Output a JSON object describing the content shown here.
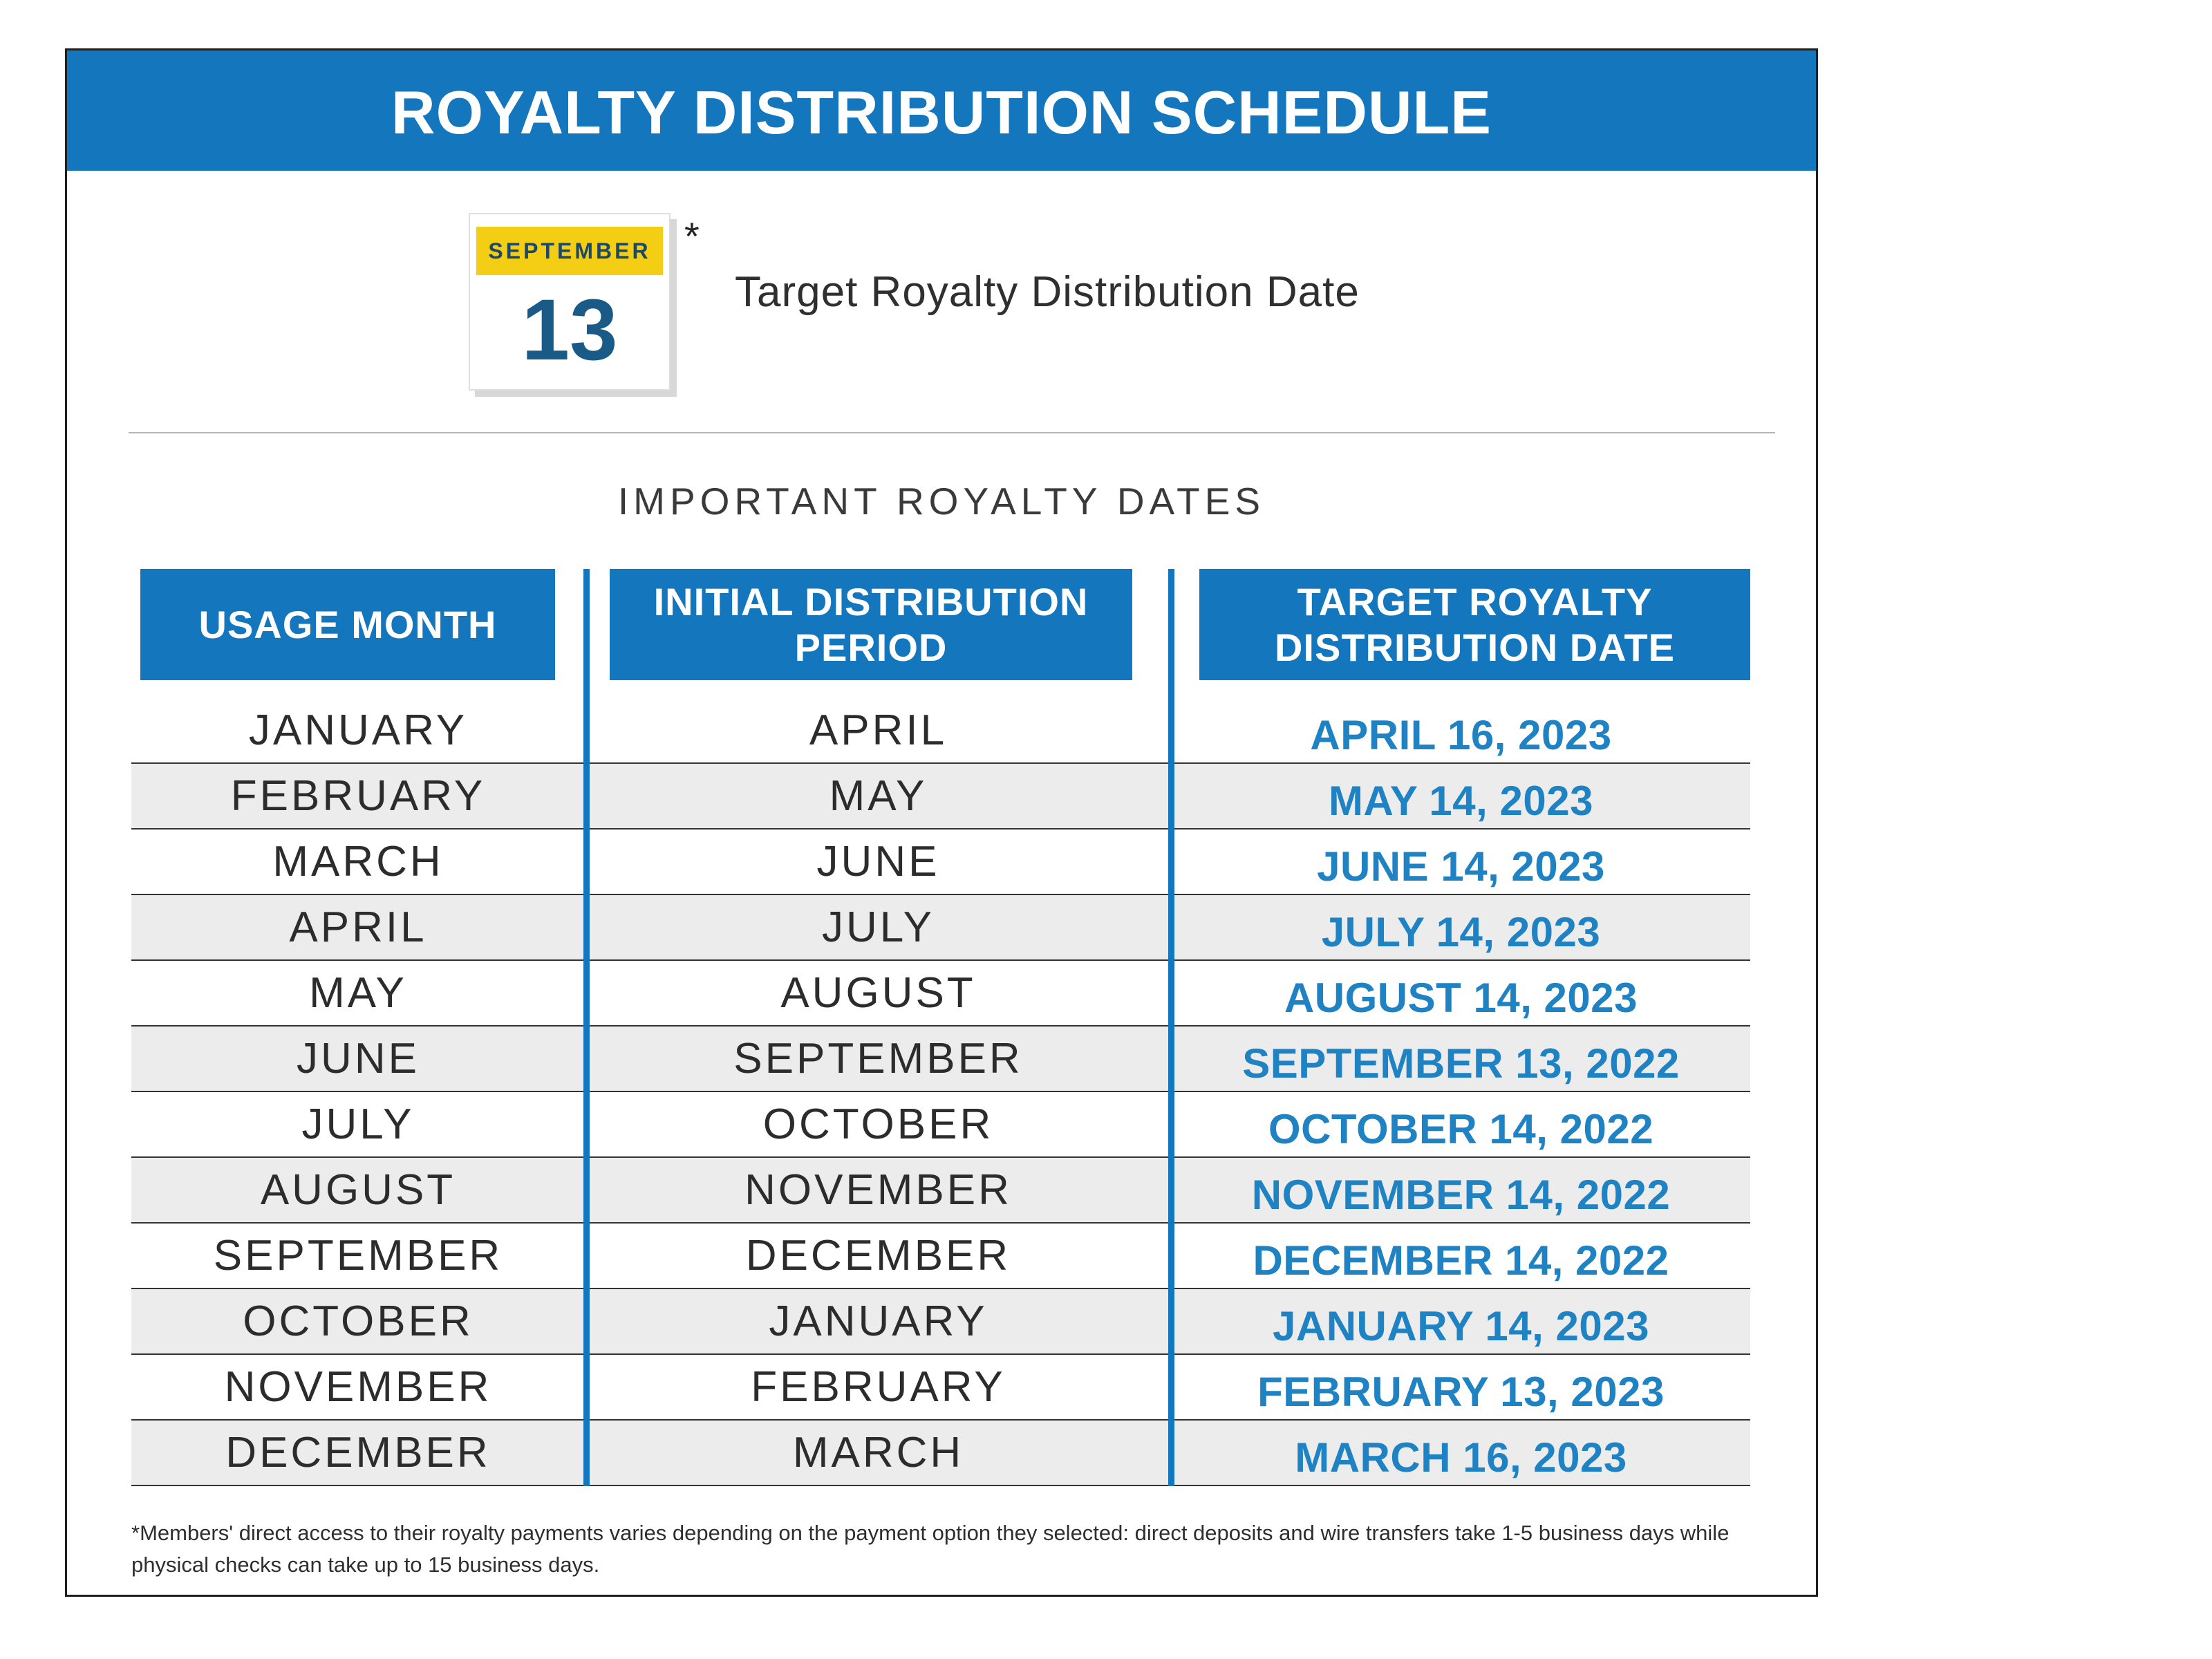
{
  "document": {
    "title": "ROYALTY DISTRIBUTION SCHEDULE"
  },
  "callout": {
    "calendar_month": "SEPTEMBER",
    "calendar_day": "13",
    "asterisk": "*",
    "label": "Target Royalty Distribution Date"
  },
  "section_heading": "IMPORTANT ROYALTY DATES",
  "table": {
    "columns": [
      "USAGE MONTH",
      "INITIAL DISTRIBUTION PERIOD",
      "TARGET ROYALTY DISTRIBUTION DATE"
    ],
    "rows": [
      {
        "usage_month": "JANUARY",
        "initial_distribution_period": "APRIL",
        "target_date": "APRIL 16, 2023"
      },
      {
        "usage_month": "FEBRUARY",
        "initial_distribution_period": "MAY",
        "target_date": "MAY 14, 2023"
      },
      {
        "usage_month": "MARCH",
        "initial_distribution_period": "JUNE",
        "target_date": "JUNE 14, 2023"
      },
      {
        "usage_month": "APRIL",
        "initial_distribution_period": "JULY",
        "target_date": "JULY 14, 2023"
      },
      {
        "usage_month": "MAY",
        "initial_distribution_period": "AUGUST",
        "target_date": "AUGUST 14, 2023"
      },
      {
        "usage_month": "JUNE",
        "initial_distribution_period": "SEPTEMBER",
        "target_date": "SEPTEMBER 13, 2022"
      },
      {
        "usage_month": "JULY",
        "initial_distribution_period": "OCTOBER",
        "target_date": "OCTOBER 14, 2022"
      },
      {
        "usage_month": "AUGUST",
        "initial_distribution_period": "NOVEMBER",
        "target_date": "NOVEMBER 14, 2022"
      },
      {
        "usage_month": "SEPTEMBER",
        "initial_distribution_period": "DECEMBER",
        "target_date": "DECEMBER 14, 2022"
      },
      {
        "usage_month": "OCTOBER",
        "initial_distribution_period": "JANUARY",
        "target_date": "JANUARY 14, 2023"
      },
      {
        "usage_month": "NOVEMBER",
        "initial_distribution_period": "FEBRUARY",
        "target_date": "FEBRUARY 13, 2023"
      },
      {
        "usage_month": "DECEMBER",
        "initial_distribution_period": "MARCH",
        "target_date": "MARCH 16, 2023"
      }
    ]
  },
  "footnote": "*Members' direct access to their royalty payments varies depending on the payment option they selected: direct deposits and wire transfers take 1-5 business days while physical checks can take up to 15 business days.",
  "colors": {
    "brand_blue": "#1477bd",
    "date_blue": "#1f82c3",
    "calendar_yellow": "#f4cd15",
    "calendar_navy": "#1d4968",
    "calendar_day_navy": "#1a5a87",
    "row_alt_gray": "#ececec"
  }
}
